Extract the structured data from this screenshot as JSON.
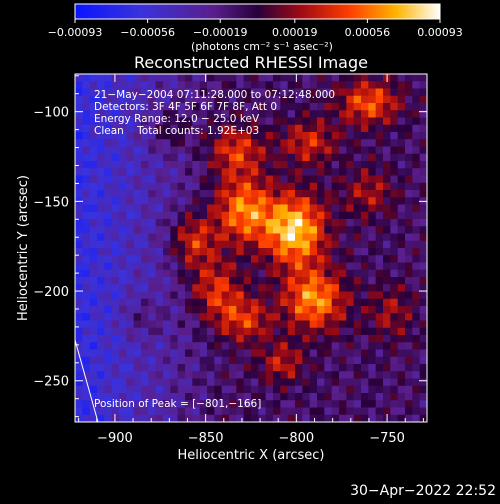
{
  "chart_data": {
    "type": "heatmap",
    "title": "Reconstructed RHESSI Image",
    "xlabel": "Heliocentric X (arcsec)",
    "ylabel": "Heliocentric Y (arcsec)",
    "xlim": [
      -922,
      -728
    ],
    "ylim": [
      -273,
      -79
    ],
    "x_ticks": [
      -900,
      -850,
      -800,
      -750
    ],
    "x_tick_labels": [
      "−900",
      "−850",
      "−800",
      "−750"
    ],
    "y_ticks": [
      -250,
      -200,
      -150,
      -100
    ],
    "y_tick_labels": [
      "−250",
      "−200",
      "−150",
      "−100"
    ],
    "colorbar": {
      "colormap": "blue-purple-red-orange-yellow-white",
      "range": [
        -0.00093,
        0.00093
      ],
      "ticks": [
        -0.00093,
        -0.00056,
        -0.00019,
        0.00019,
        0.00056,
        0.00093
      ],
      "tick_labels": [
        "−0.00093",
        "−0.00056",
        "−0.00019",
        "0.00019",
        "0.00056",
        "0.00093"
      ],
      "unit_label": "(photons cm⁻² s⁻¹ asec⁻²)"
    },
    "annotations": [
      "21−May−2004 07:11:28.000 to 07:12:48.000",
      "Detectors: 3F 4F 5F 6F 7F 8F, Att 0",
      "Energy Range: 12.0 − 25.0 keV",
      "Clean    Total counts: 1.92E+03"
    ],
    "peak_label": "Position of Peak = [−801,−166]",
    "peak": [
      -801,
      -166
    ],
    "emission_sources": [
      {
        "x": -801,
        "y": -166,
        "sigma_x": 12,
        "sigma_y": 14,
        "amplitude": 0.00093
      },
      {
        "x": -829,
        "y": -155,
        "sigma_x": 11,
        "sigma_y": 13,
        "amplitude": 0.0007
      },
      {
        "x": -857,
        "y": -172,
        "sigma_x": 9,
        "sigma_y": 11,
        "amplitude": 0.00055
      },
      {
        "x": -790,
        "y": -205,
        "sigma_x": 12,
        "sigma_y": 12,
        "amplitude": 0.00075
      },
      {
        "x": -845,
        "y": -200,
        "sigma_x": 10,
        "sigma_y": 12,
        "amplitude": 0.0005
      },
      {
        "x": -828,
        "y": -216,
        "sigma_x": 10,
        "sigma_y": 9,
        "amplitude": 0.00048
      },
      {
        "x": -833,
        "y": -122,
        "sigma_x": 11,
        "sigma_y": 10,
        "amplitude": 0.0005
      },
      {
        "x": -760,
        "y": -95,
        "sigma_x": 12,
        "sigma_y": 9,
        "amplitude": 0.0006
      },
      {
        "x": -793,
        "y": -117,
        "sigma_x": 11,
        "sigma_y": 9,
        "amplitude": 0.00045
      },
      {
        "x": -760,
        "y": -145,
        "sigma_x": 10,
        "sigma_y": 10,
        "amplitude": 0.00035
      },
      {
        "x": -808,
        "y": -240,
        "sigma_x": 9,
        "sigma_y": 8,
        "amplitude": 0.0004
      },
      {
        "x": -870,
        "y": -110,
        "sigma_x": 8,
        "sigma_y": 8,
        "amplitude": 0.0003
      },
      {
        "x": -748,
        "y": -212,
        "sigma_x": 9,
        "sigma_y": 11,
        "amplitude": 0.00032
      },
      {
        "x": -885,
        "y": -215,
        "sigma_x": 8,
        "sigma_y": 8,
        "amplitude": 0.00022
      }
    ]
  },
  "timestamp": "30−Apr−2022 22:52"
}
